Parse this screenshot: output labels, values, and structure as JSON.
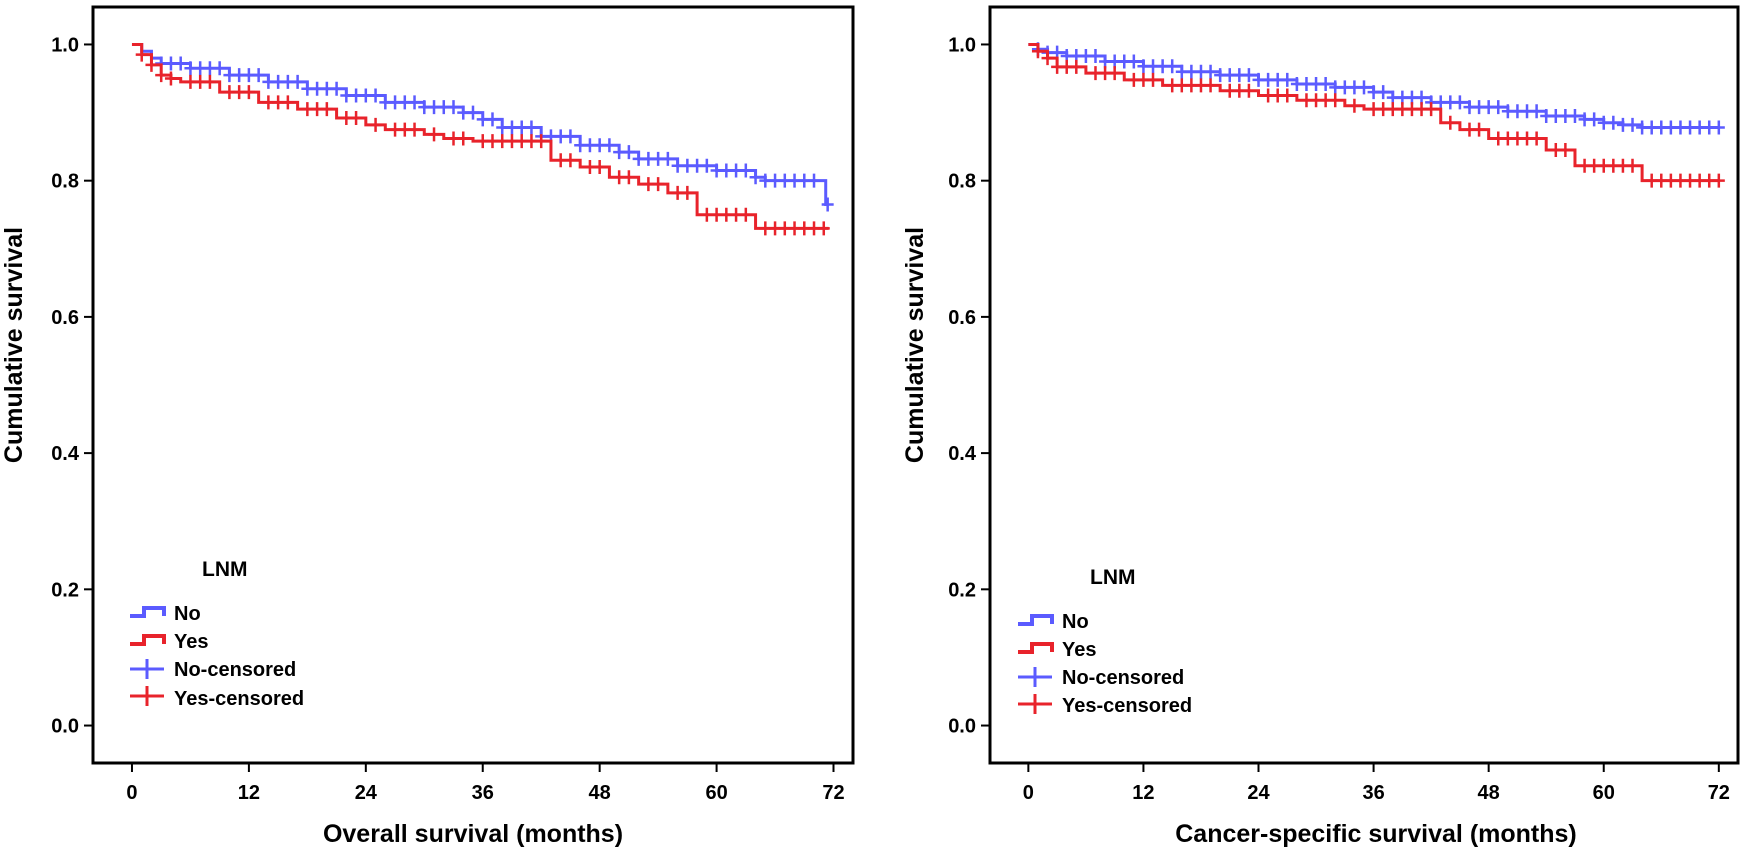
{
  "colors": {
    "no": "#5b5bff",
    "yes": "#e8232b",
    "axis": "#000000"
  },
  "chart_data": [
    {
      "type": "line",
      "subtype": "kaplan-meier",
      "title": "",
      "xlabel": "Overall survival (months)",
      "ylabel": "Cumulative survival",
      "xlim": [
        -4,
        74
      ],
      "ylim": [
        -0.055,
        1.055
      ],
      "xticks": [
        0,
        12,
        24,
        36,
        48,
        60,
        72
      ],
      "yticks": [
        0.0,
        0.2,
        0.4,
        0.6,
        0.8,
        1.0
      ],
      "xtick_labels": [
        "0",
        "12",
        "24",
        "36",
        "48",
        "60",
        "72"
      ],
      "ytick_labels": [
        "0.0",
        "0.2",
        "0.4",
        "0.6",
        "0.8",
        "1.0"
      ],
      "legend": {
        "title": "LNM",
        "position": "bottom-left",
        "entries": [
          "No",
          "Yes",
          "No-censored",
          "Yes-censored"
        ]
      },
      "series": [
        {
          "name": "No",
          "color_key": "no",
          "steps": [
            [
              0,
              1.0
            ],
            [
              1,
              0.99
            ],
            [
              2,
              0.98
            ],
            [
              3,
              0.972
            ],
            [
              6,
              0.965
            ],
            [
              10,
              0.955
            ],
            [
              14,
              0.945
            ],
            [
              18,
              0.935
            ],
            [
              22,
              0.925
            ],
            [
              26,
              0.915
            ],
            [
              30,
              0.908
            ],
            [
              34,
              0.9
            ],
            [
              36,
              0.89
            ],
            [
              38,
              0.878
            ],
            [
              42,
              0.865
            ],
            [
              46,
              0.852
            ],
            [
              50,
              0.842
            ],
            [
              52,
              0.832
            ],
            [
              56,
              0.822
            ],
            [
              60,
              0.815
            ],
            [
              64,
              0.805
            ],
            [
              65,
              0.8
            ],
            [
              71,
              0.8
            ],
            [
              71.2,
              0.765
            ]
          ],
          "end_x": 71.5,
          "censored": [
            3,
            4,
            5,
            6,
            7,
            8,
            9,
            10,
            11,
            12,
            13,
            14,
            15,
            16,
            17,
            18,
            19,
            20,
            21,
            22,
            23,
            24,
            25,
            26,
            27,
            28,
            29,
            30,
            31,
            32,
            33,
            34,
            35,
            36,
            37,
            38,
            39,
            40,
            41,
            42,
            43,
            44,
            45,
            46,
            47,
            48,
            49,
            50,
            51,
            52,
            53,
            54,
            55,
            56,
            57,
            58,
            59,
            60,
            61,
            62,
            63,
            64,
            65,
            66,
            67,
            68,
            69,
            70,
            71.4
          ]
        },
        {
          "name": "Yes",
          "color_key": "yes",
          "steps": [
            [
              0,
              1.0
            ],
            [
              1,
              0.985
            ],
            [
              2,
              0.97
            ],
            [
              3,
              0.955
            ],
            [
              4,
              0.95
            ],
            [
              5,
              0.945
            ],
            [
              9,
              0.93
            ],
            [
              13,
              0.915
            ],
            [
              17,
              0.905
            ],
            [
              21,
              0.892
            ],
            [
              24,
              0.882
            ],
            [
              26,
              0.875
            ],
            [
              30,
              0.868
            ],
            [
              32,
              0.862
            ],
            [
              35,
              0.858
            ],
            [
              43,
              0.83
            ],
            [
              46,
              0.82
            ],
            [
              49,
              0.805
            ],
            [
              52,
              0.795
            ],
            [
              55,
              0.782
            ],
            [
              58,
              0.75
            ],
            [
              64,
              0.73
            ]
          ],
          "end_x": 71.5,
          "censored": [
            1,
            2,
            3,
            4,
            6,
            7,
            8,
            10,
            11,
            12,
            14,
            15,
            16,
            18,
            19,
            20,
            22,
            23,
            25,
            27,
            28,
            29,
            31,
            33,
            34,
            36,
            37,
            38,
            39,
            40,
            41,
            42,
            44,
            45,
            47,
            48,
            50,
            51,
            53,
            54,
            56,
            57,
            59,
            60,
            61,
            62,
            63,
            65,
            66,
            67,
            68,
            69,
            70,
            71
          ]
        }
      ]
    },
    {
      "type": "line",
      "subtype": "kaplan-meier",
      "title": "",
      "xlabel": "Cancer-specific survival (months)",
      "ylabel": "Cumulative survival",
      "xlim": [
        -4,
        74
      ],
      "ylim": [
        -0.055,
        1.055
      ],
      "xticks": [
        0,
        12,
        24,
        36,
        48,
        60,
        72
      ],
      "yticks": [
        0.0,
        0.2,
        0.4,
        0.6,
        0.8,
        1.0
      ],
      "xtick_labels": [
        "0",
        "12",
        "24",
        "36",
        "48",
        "60",
        "72"
      ],
      "ytick_labels": [
        "0.0",
        "0.2",
        "0.4",
        "0.6",
        "0.8",
        "1.0"
      ],
      "legend": {
        "title": "LNM",
        "position": "bottom-left",
        "entries": [
          "No",
          "Yes",
          "No-censored",
          "Yes-censored"
        ]
      },
      "series": [
        {
          "name": "No",
          "color_key": "no",
          "steps": [
            [
              0,
              1.0
            ],
            [
              1,
              0.993
            ],
            [
              2,
              0.988
            ],
            [
              4,
              0.983
            ],
            [
              8,
              0.975
            ],
            [
              12,
              0.968
            ],
            [
              16,
              0.96
            ],
            [
              20,
              0.955
            ],
            [
              24,
              0.948
            ],
            [
              28,
              0.942
            ],
            [
              32,
              0.937
            ],
            [
              36,
              0.93
            ],
            [
              38,
              0.922
            ],
            [
              42,
              0.915
            ],
            [
              46,
              0.908
            ],
            [
              50,
              0.902
            ],
            [
              54,
              0.895
            ],
            [
              58,
              0.89
            ],
            [
              60,
              0.885
            ],
            [
              62,
              0.882
            ],
            [
              64,
              0.878
            ]
          ],
          "end_x": 72,
          "censored": [
            1,
            2,
            3,
            4,
            5,
            6,
            7,
            8,
            9,
            10,
            11,
            12,
            13,
            14,
            15,
            16,
            17,
            18,
            19,
            20,
            21,
            22,
            23,
            24,
            25,
            26,
            27,
            28,
            29,
            30,
            31,
            32,
            33,
            34,
            35,
            36,
            37,
            38,
            39,
            40,
            41,
            42,
            43,
            44,
            45,
            46,
            47,
            48,
            49,
            50,
            51,
            52,
            53,
            54,
            55,
            56,
            57,
            58,
            59,
            60,
            61,
            62,
            63,
            64,
            65,
            66,
            67,
            68,
            69,
            70,
            71,
            72
          ]
        },
        {
          "name": "Yes",
          "color_key": "yes",
          "steps": [
            [
              0,
              1.0
            ],
            [
              1,
              0.99
            ],
            [
              2,
              0.98
            ],
            [
              3,
              0.967
            ],
            [
              6,
              0.958
            ],
            [
              10,
              0.948
            ],
            [
              14,
              0.94
            ],
            [
              20,
              0.932
            ],
            [
              24,
              0.925
            ],
            [
              28,
              0.918
            ],
            [
              33,
              0.91
            ],
            [
              35,
              0.905
            ],
            [
              43,
              0.885
            ],
            [
              45,
              0.875
            ],
            [
              48,
              0.862
            ],
            [
              54,
              0.845
            ],
            [
              57,
              0.822
            ],
            [
              64,
              0.8
            ]
          ],
          "end_x": 72,
          "censored": [
            1,
            2,
            3,
            4,
            5,
            7,
            8,
            9,
            11,
            12,
            13,
            15,
            16,
            17,
            18,
            19,
            21,
            22,
            23,
            25,
            26,
            27,
            29,
            30,
            31,
            32,
            34,
            36,
            37,
            38,
            39,
            40,
            41,
            42,
            44,
            46,
            47,
            49,
            50,
            51,
            52,
            53,
            55,
            56,
            58,
            59,
            60,
            61,
            62,
            63,
            65,
            66,
            67,
            68,
            69,
            70,
            71,
            72
          ]
        }
      ]
    }
  ]
}
